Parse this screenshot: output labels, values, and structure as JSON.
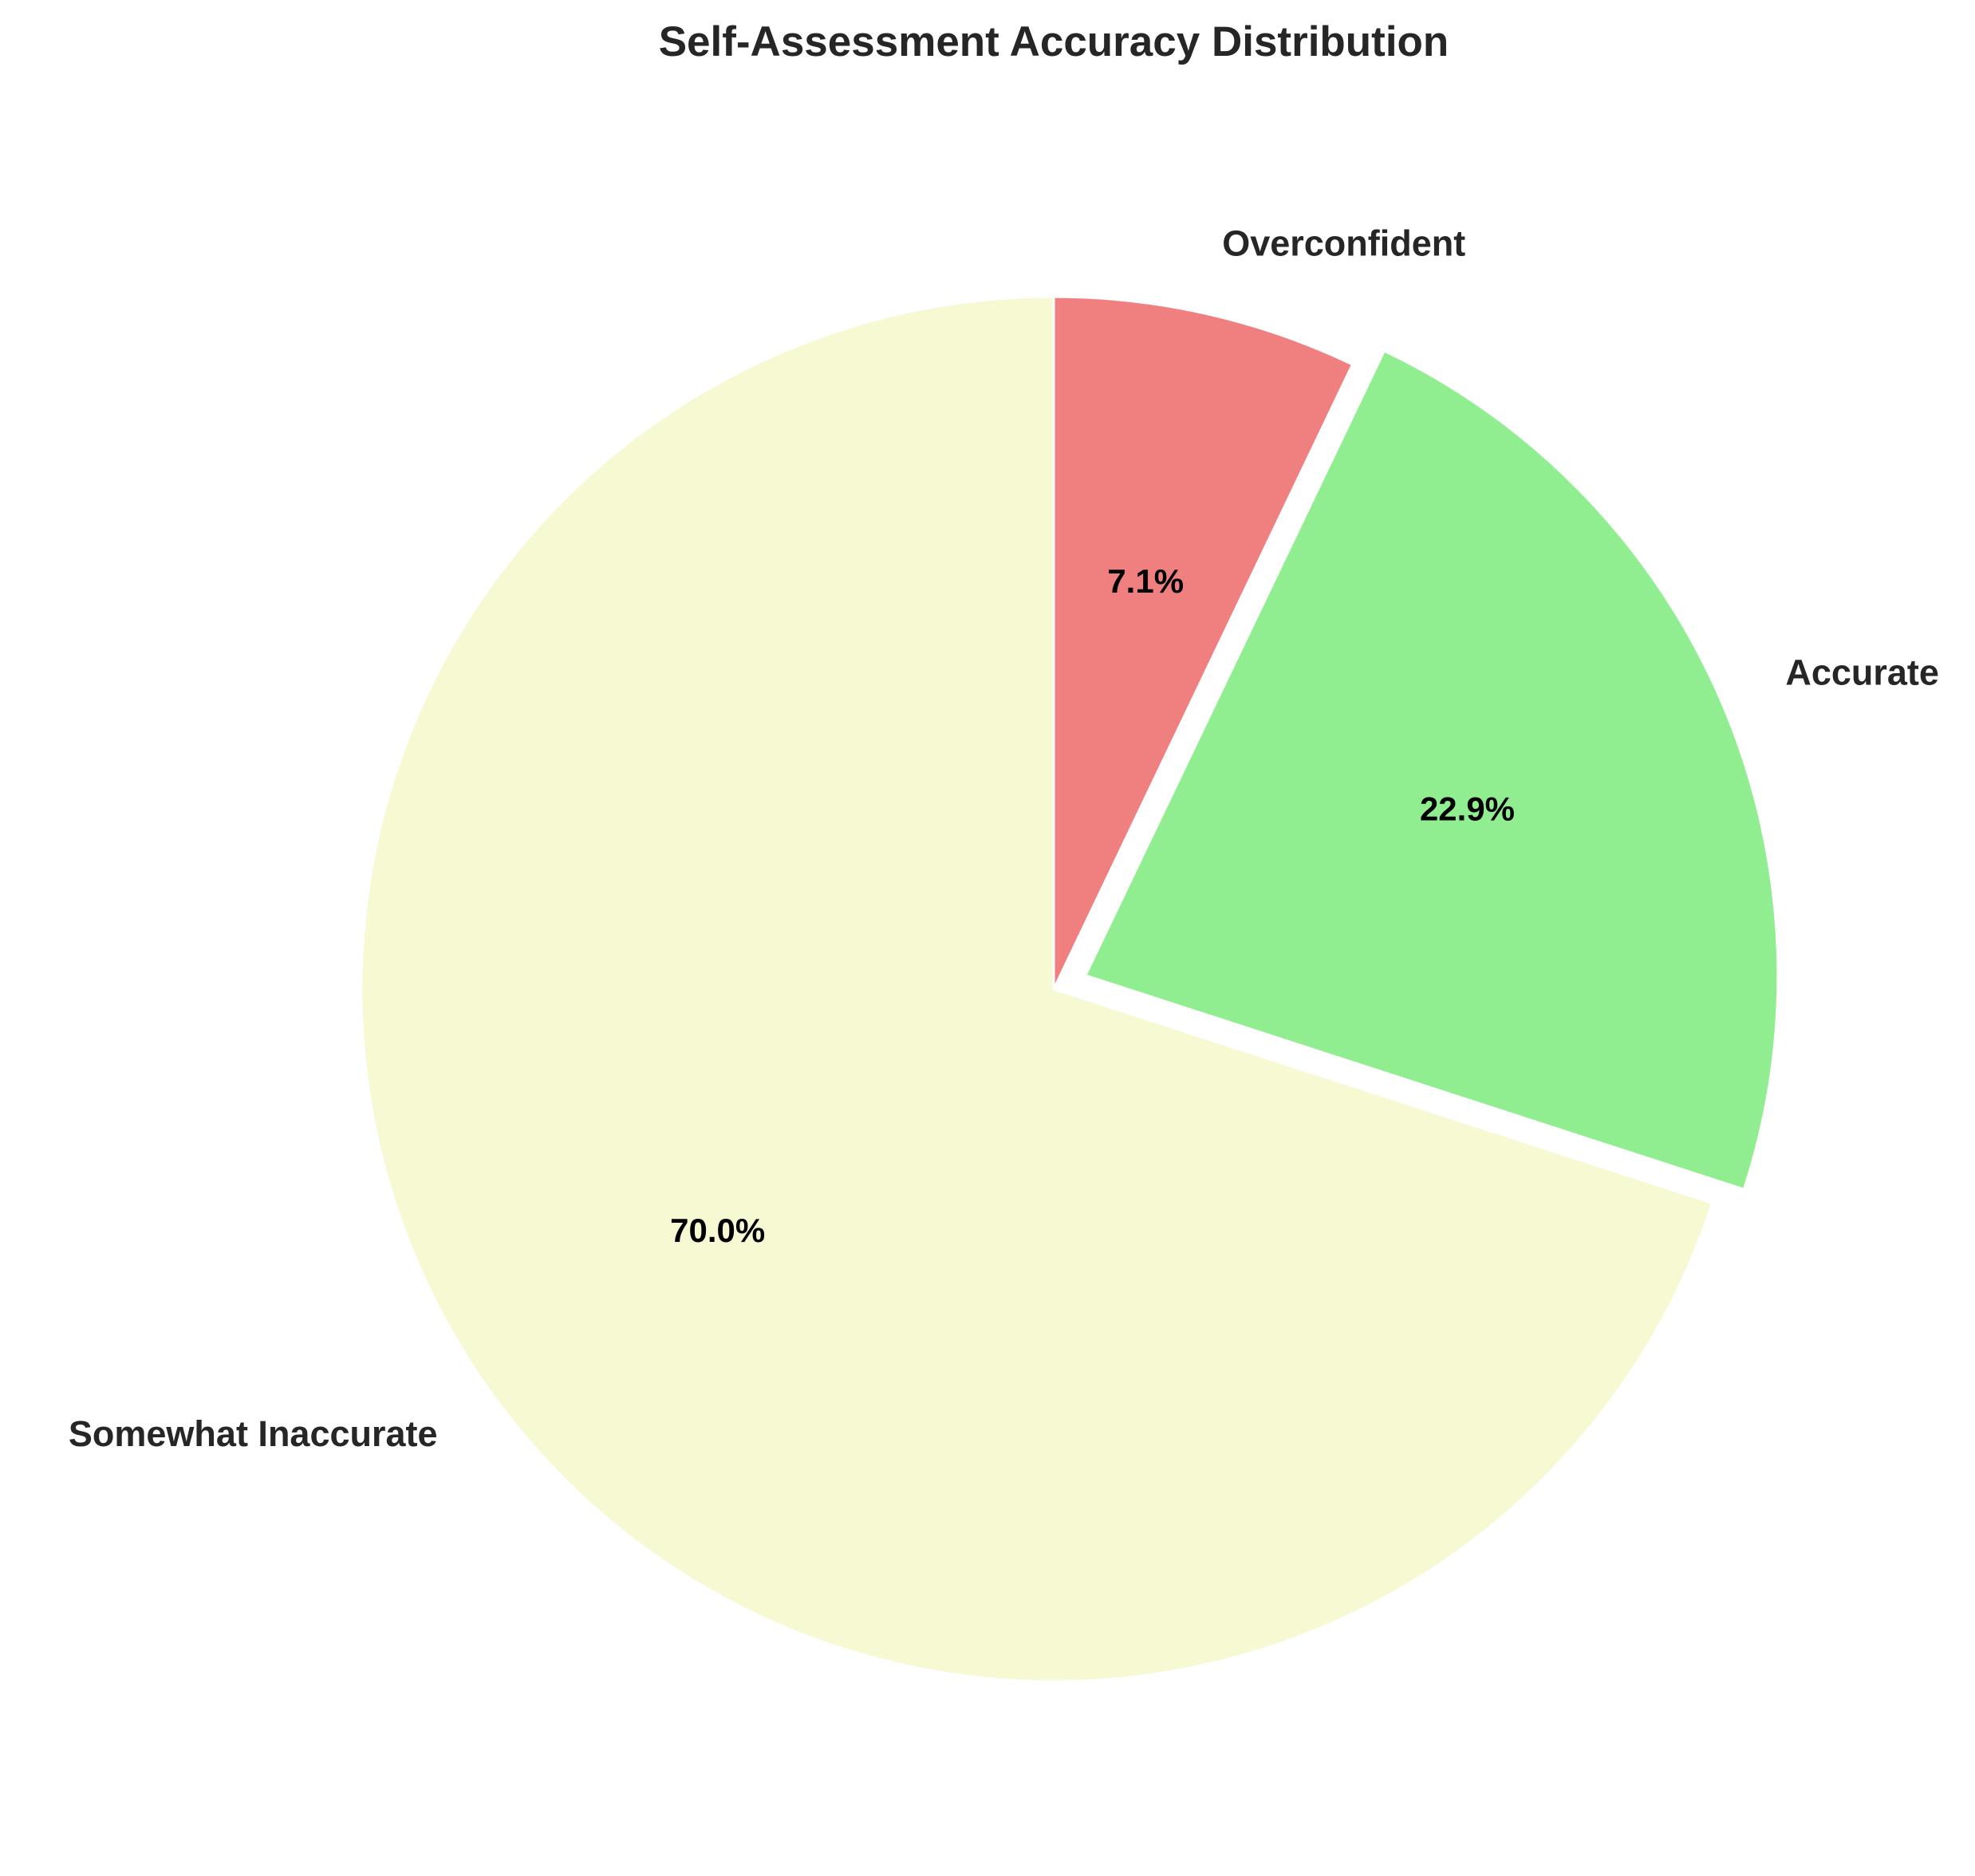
{
  "chart_data": {
    "type": "pie",
    "title": "Self-Assessment Accuracy Distribution",
    "start_angle_deg": 90,
    "direction": "clockwise",
    "slices": [
      {
        "label": "Overconfident",
        "value": 7.1,
        "pct_label": "7.1%",
        "color": "#F08080",
        "exploded": false
      },
      {
        "label": "Accurate",
        "value": 22.9,
        "pct_label": "22.9%",
        "color": "#90EE90",
        "exploded": true
      },
      {
        "label": "Somewhat Inaccurate",
        "value": 70.0,
        "pct_label": "70.0%",
        "color": "#F7F9D2",
        "exploded": false
      }
    ]
  }
}
